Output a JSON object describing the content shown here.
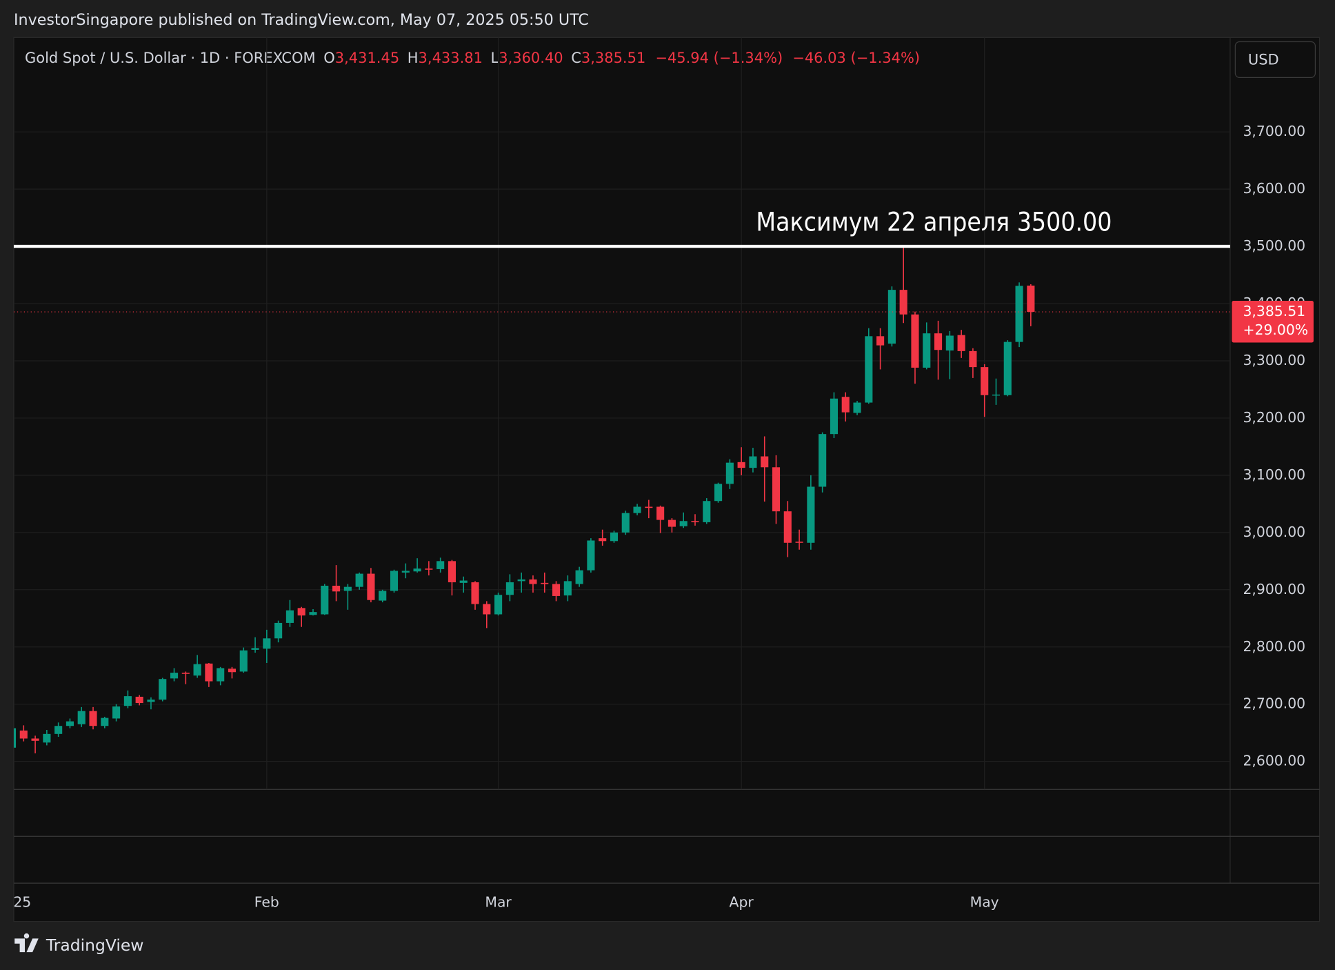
{
  "header": {
    "publisher": "InvestorSingapore published on TradingView.com, May 07, 2025 05:50 UTC"
  },
  "toolbar": {
    "currency": "USD"
  },
  "footer": {
    "brand": "TradingView"
  },
  "legend": {
    "symbol": "Gold Spot / U.S. Dollar · 1D · FOREXCOM",
    "o_key": "O",
    "o": "3,431.45",
    "h_key": "H",
    "h": "3,433.81",
    "l_key": "L",
    "l": "3,360.40",
    "c_key": "C",
    "c": "3,385.51",
    "change": "−45.94 (−1.34%)",
    "change2": "−46.03 (−1.34%)"
  },
  "chart_data": {
    "type": "candlestick",
    "up_color": "#089981",
    "down_color": "#f23645",
    "categories": [
      "25",
      null,
      null,
      null,
      null,
      null,
      null,
      null,
      null,
      null,
      null,
      null,
      null,
      null,
      null,
      null,
      null,
      null,
      null,
      null,
      null,
      null,
      "Feb",
      null,
      null,
      null,
      null,
      null,
      null,
      null,
      null,
      null,
      null,
      null,
      null,
      null,
      null,
      null,
      null,
      null,
      null,
      null,
      "Mar",
      null,
      null,
      null,
      null,
      null,
      null,
      null,
      null,
      null,
      null,
      null,
      null,
      null,
      null,
      null,
      null,
      null,
      null,
      null,
      null,
      "Apr",
      null,
      null,
      null,
      null,
      null,
      null,
      null,
      null,
      null,
      null,
      null,
      null,
      null,
      null,
      null,
      null,
      null,
      null,
      null,
      null,
      "May",
      null,
      null,
      null,
      null
    ],
    "open": [
      2624,
      2654,
      2640,
      2633,
      2648,
      2662,
      2665,
      2688,
      2662,
      2675,
      2697,
      2713,
      2704,
      2708,
      2745,
      2755,
      2750,
      2771,
      2740,
      2762,
      2757,
      2795,
      2797,
      2815,
      2842,
      2868,
      2856,
      2857,
      2907,
      2898,
      2905,
      2928,
      2881,
      2898,
      2930,
      2932,
      2937,
      2936,
      2950,
      2912,
      2913,
      2875,
      2857,
      2891,
      2915,
      2918,
      2912,
      2910,
      2890,
      2910,
      2934,
      2990,
      2985,
      3000,
      3034,
      3045,
      3045,
      3022,
      3011,
      3020,
      3018,
      3055,
      3085,
      3123,
      3113,
      3133,
      3114,
      3037,
      2984,
      2982,
      3080,
      3172,
      3237,
      3209,
      3227,
      3343,
      3330,
      3424,
      3381,
      3288,
      3348,
      3318,
      3345,
      3317,
      3289,
      3240,
      3240,
      3333,
      3431.45
    ],
    "high": [
      2660,
      2663,
      2645,
      2655,
      2668,
      2675,
      2695,
      2695,
      2678,
      2700,
      2724,
      2716,
      2712,
      2746,
      2763,
      2757,
      2786,
      2772,
      2765,
      2765,
      2799,
      2817,
      2830,
      2846,
      2882,
      2870,
      2866,
      2910,
      2943,
      2910,
      2930,
      2938,
      2900,
      2935,
      2946,
      2955,
      2950,
      2956,
      2952,
      2923,
      2915,
      2880,
      2895,
      2927,
      2930,
      2925,
      2930,
      2915,
      2925,
      2940,
      2990,
      3005,
      3003,
      3038,
      3050,
      3057,
      3047,
      3025,
      3035,
      3032,
      3060,
      3087,
      3128,
      3149,
      3148,
      3168,
      3135,
      3055,
      3005,
      3100,
      3175,
      3245,
      3245,
      3230,
      3357,
      3357,
      3430,
      3500,
      3386,
      3367,
      3370,
      3352,
      3354,
      3322,
      3294,
      3269,
      3336,
      3437,
      3433.81
    ],
    "low": [
      2620,
      2635,
      2614,
      2628,
      2643,
      2658,
      2660,
      2656,
      2658,
      2670,
      2693,
      2698,
      2691,
      2705,
      2740,
      2735,
      2746,
      2730,
      2733,
      2745,
      2755,
      2790,
      2772,
      2808,
      2835,
      2835,
      2855,
      2856,
      2880,
      2865,
      2900,
      2878,
      2878,
      2895,
      2920,
      2930,
      2925,
      2930,
      2890,
      2895,
      2865,
      2833,
      2855,
      2880,
      2895,
      2895,
      2895,
      2880,
      2880,
      2905,
      2930,
      2977,
      2982,
      2996,
      3030,
      3025,
      2999,
      3000,
      3008,
      3012,
      3015,
      3052,
      3076,
      3100,
      3105,
      3054,
      3015,
      2957,
      2970,
      2970,
      3070,
      3165,
      3194,
      3205,
      3225,
      3285,
      3325,
      3366,
      3260,
      3285,
      3267,
      3268,
      3305,
      3270,
      3202,
      3223,
      3238,
      3324,
      3360.4
    ],
    "close": [
      2658,
      2640,
      2636,
      2648,
      2662,
      2670,
      2688,
      2662,
      2676,
      2696,
      2714,
      2702,
      2708,
      2744,
      2755,
      2753,
      2770,
      2740,
      2763,
      2756,
      2794,
      2798,
      2815,
      2842,
      2864,
      2855,
      2861,
      2907,
      2897,
      2905,
      2928,
      2882,
      2898,
      2933,
      2933,
      2937,
      2935,
      2950,
      2913,
      2916,
      2875,
      2857,
      2891,
      2913,
      2918,
      2910,
      2910,
      2889,
      2915,
      2934,
      2986,
      2985,
      3000,
      3034,
      3045,
      3043,
      3022,
      3010,
      3020,
      3018,
      3055,
      3085,
      3122,
      3113,
      3133,
      3114,
      3037,
      2982,
      2982,
      3080,
      3172,
      3234,
      3210,
      3227,
      3343,
      3327,
      3424,
      3381,
      3288,
      3348,
      3319,
      3344,
      3317,
      3289,
      3240,
      3241,
      3333,
      3431,
      3385.51
    ],
    "ylim": [
      2551,
      3865
    ],
    "yticks": [
      {
        "value": 2600,
        "label": "2,600.00"
      },
      {
        "value": 2700,
        "label": "2,700.00"
      },
      {
        "value": 2800,
        "label": "2,800.00"
      },
      {
        "value": 2900,
        "label": "2,900.00"
      },
      {
        "value": 3000,
        "label": "3,000.00"
      },
      {
        "value": 3100,
        "label": "3,100.00"
      },
      {
        "value": 3200,
        "label": "3,200.00"
      },
      {
        "value": 3300,
        "label": "3,300.00"
      },
      {
        "value": 3400,
        "label": "3,400.00"
      },
      {
        "value": 3500,
        "label": "3,500.00"
      },
      {
        "value": 3600,
        "label": "3,600.00"
      },
      {
        "value": 3700,
        "label": "3,700.00"
      }
    ],
    "grid": true,
    "annotation": {
      "text": "Максимум 22 апреля 3500.00",
      "value": 3500,
      "color": "#ffffff"
    },
    "last_price": {
      "label": "3,385.51",
      "change": "+29.00%"
    }
  }
}
